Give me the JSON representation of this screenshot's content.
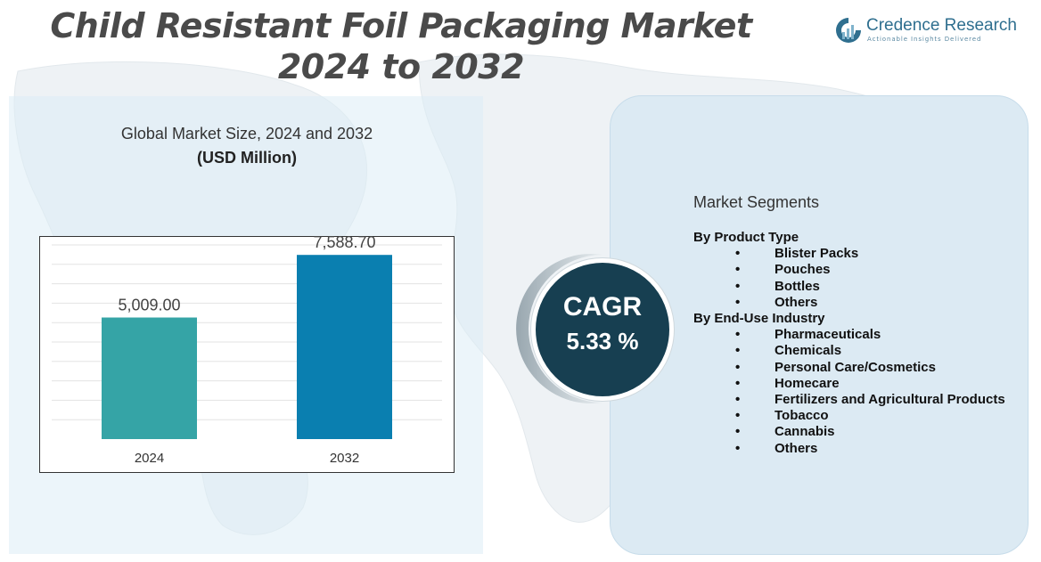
{
  "page": {
    "title_line1": "Child Resistant Foil Packaging Market",
    "title_line2": "2024 to 2032"
  },
  "logo": {
    "name": "Credence Research",
    "tagline": "Actionable Insights Delivered",
    "color": "#2f6f8f"
  },
  "chart_data": {
    "type": "bar",
    "title": "Global Market Size,  2024 and 2032",
    "subtitle": "(USD Million)",
    "categories": [
      "2024",
      "2032"
    ],
    "values": [
      5009.0,
      7588.7
    ],
    "value_labels": [
      "5,009.00",
      "7,588.70"
    ],
    "colors": [
      "#35a4a6",
      "#0a7fb0"
    ],
    "ylim": [
      0,
      8000
    ],
    "grid": true,
    "legend": false
  },
  "cagr": {
    "label": "CAGR",
    "value": "5.33 %"
  },
  "segments": {
    "heading": "Market Segments",
    "bullet": "•",
    "groups": [
      {
        "label": "By Product Type",
        "items": [
          "Blister Packs",
          "Pouches",
          "Bottles",
          "Others"
        ]
      },
      {
        "label": "By End-Use Industry",
        "items": [
          "Pharmaceuticals",
          "Chemicals",
          "Personal Care/Cosmetics",
          "Homecare",
          "Fertilizers and Agricultural Products",
          "Tobacco",
          "Cannabis",
          "Others"
        ]
      }
    ]
  }
}
